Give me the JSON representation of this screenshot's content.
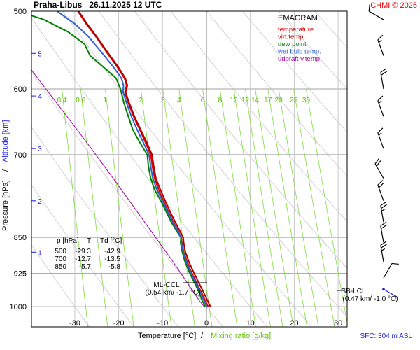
{
  "chart_data": {
    "type": "line",
    "title": "Praha-Libus   26.11.2025 12 UTC",
    "station": "Praha-Libus",
    "datetime": "26.11.2025 12 UTC",
    "copyright": "CHMI © 2025",
    "diagram_name": "EMAGRAM",
    "xlabel": "Temperature [°C]",
    "xlabel_sep": "/",
    "xlabel2": "Mixing ratio [g/kg]",
    "ylabel": "Pressure [hPa]",
    "ylabel_sep": "/",
    "ylabel2": "Altitude [km]",
    "surface_note": "SFC: 304 m ASL",
    "xlim": [
      -40,
      32
    ],
    "ylim_hpa": [
      1000,
      500
    ],
    "x_ticks": [
      -30,
      -20,
      -10,
      0,
      10,
      20,
      30
    ],
    "x_tick_labels": [
      "-30",
      "-20",
      "-10",
      "0",
      "10",
      "20",
      "30"
    ],
    "p_ticks": [
      500,
      600,
      700,
      850,
      925,
      1000
    ],
    "p_tick_labels": [
      "500",
      "600",
      "700",
      "850",
      "925",
      "1000"
    ],
    "altitude_ticks": [
      {
        "km": "5",
        "p": 552
      },
      {
        "km": "4",
        "p": 610
      },
      {
        "km": "3",
        "p": 690
      },
      {
        "km": "2",
        "p": 780
      },
      {
        "km": "1",
        "p": 880
      }
    ],
    "mixing_ratio_labels": [
      "0.4",
      "0.6",
      "1",
      "2",
      "3",
      "4",
      "6",
      "8",
      "10",
      "12",
      "14",
      "17",
      "20",
      "25",
      "30"
    ],
    "mixing_ratio_values": [
      0.4,
      0.6,
      1,
      2,
      3,
      4,
      6,
      8,
      10,
      12,
      14,
      17,
      20,
      25,
      30
    ],
    "legend": [
      {
        "label": "temperature",
        "color": "#e00000"
      },
      {
        "label": "virt.temp.",
        "color": "#b00000"
      },
      {
        "label": "dew point",
        "color": "#008000"
      },
      {
        "label": "wet bulb temp.",
        "color": "#3060d0"
      },
      {
        "label": "udpraft v.temp.",
        "color": "#a000a0"
      }
    ],
    "legend_placement": "top-right",
    "series": [
      {
        "name": "temperature",
        "color": "#e00000",
        "points": [
          [
            1000,
            0.4
          ],
          [
            985,
            -0.3
          ],
          [
            960,
            -1.5
          ],
          [
            925,
            -3.3
          ],
          [
            900,
            -4.4
          ],
          [
            880,
            -5.2
          ],
          [
            860,
            -5.6
          ],
          [
            850,
            -5.7
          ],
          [
            840,
            -6.3
          ],
          [
            820,
            -7.5
          ],
          [
            800,
            -8.7
          ],
          [
            780,
            -9.8
          ],
          [
            760,
            -10.9
          ],
          [
            740,
            -11.8
          ],
          [
            720,
            -12.3
          ],
          [
            700,
            -12.7
          ],
          [
            680,
            -13.9
          ],
          [
            660,
            -15.2
          ],
          [
            640,
            -16.6
          ],
          [
            620,
            -17.8
          ],
          [
            605,
            -18.6
          ],
          [
            595,
            -18.2
          ],
          [
            585,
            -18.7
          ],
          [
            570,
            -20.3
          ],
          [
            550,
            -22.8
          ],
          [
            530,
            -25.3
          ],
          [
            515,
            -27.4
          ],
          [
            500,
            -29.3
          ]
        ]
      },
      {
        "name": "virt.temp.",
        "color": "#b00000",
        "points": [
          [
            1000,
            0.9
          ],
          [
            985,
            0.2
          ],
          [
            960,
            -1.0
          ],
          [
            925,
            -2.8
          ],
          [
            900,
            -4.0
          ],
          [
            880,
            -4.8
          ],
          [
            860,
            -5.2
          ],
          [
            850,
            -5.3
          ],
          [
            840,
            -5.9
          ],
          [
            820,
            -7.1
          ],
          [
            800,
            -8.3
          ],
          [
            780,
            -9.4
          ],
          [
            760,
            -10.5
          ],
          [
            740,
            -11.5
          ],
          [
            720,
            -12.0
          ],
          [
            700,
            -12.4
          ],
          [
            680,
            -13.6
          ],
          [
            660,
            -15.0
          ],
          [
            640,
            -16.4
          ],
          [
            620,
            -17.6
          ],
          [
            605,
            -18.4
          ],
          [
            595,
            -18.0
          ],
          [
            585,
            -18.5
          ],
          [
            570,
            -20.1
          ],
          [
            550,
            -22.6
          ],
          [
            530,
            -25.1
          ],
          [
            515,
            -27.2
          ],
          [
            500,
            -29.1
          ]
        ]
      },
      {
        "name": "dew point",
        "color": "#008000",
        "points": [
          [
            1000,
            -0.3
          ],
          [
            985,
            -1.0
          ],
          [
            960,
            -2.0
          ],
          [
            925,
            -3.8
          ],
          [
            900,
            -4.9
          ],
          [
            880,
            -5.5
          ],
          [
            860,
            -5.9
          ],
          [
            850,
            -5.8
          ],
          [
            840,
            -6.6
          ],
          [
            820,
            -8.0
          ],
          [
            800,
            -9.2
          ],
          [
            780,
            -10.4
          ],
          [
            760,
            -11.8
          ],
          [
            740,
            -12.7
          ],
          [
            720,
            -13.2
          ],
          [
            700,
            -13.5
          ],
          [
            680,
            -15.2
          ],
          [
            660,
            -16.8
          ],
          [
            640,
            -17.8
          ],
          [
            620,
            -18.8
          ],
          [
            600,
            -19.6
          ],
          [
            585,
            -20.6
          ],
          [
            570,
            -23.5
          ],
          [
            555,
            -26.5
          ],
          [
            540,
            -27.8
          ],
          [
            525,
            -31.5
          ],
          [
            510,
            -37.0
          ],
          [
            500,
            -42.9
          ]
        ]
      },
      {
        "name": "wet bulb temp.",
        "color": "#3060d0",
        "points": [
          [
            1000,
            0.1
          ],
          [
            985,
            -0.6
          ],
          [
            960,
            -1.7
          ],
          [
            925,
            -3.5
          ],
          [
            900,
            -4.6
          ],
          [
            880,
            -5.3
          ],
          [
            860,
            -5.7
          ],
          [
            850,
            -5.75
          ],
          [
            840,
            -6.4
          ],
          [
            820,
            -7.7
          ],
          [
            800,
            -8.9
          ],
          [
            780,
            -10.0
          ],
          [
            760,
            -11.3
          ],
          [
            740,
            -12.2
          ],
          [
            720,
            -12.7
          ],
          [
            700,
            -13.1
          ],
          [
            680,
            -14.4
          ],
          [
            660,
            -15.8
          ],
          [
            640,
            -17.1
          ],
          [
            620,
            -18.2
          ],
          [
            605,
            -19.0
          ],
          [
            595,
            -18.9
          ],
          [
            585,
            -19.4
          ],
          [
            570,
            -21.2
          ],
          [
            550,
            -24.0
          ],
          [
            530,
            -27.0
          ],
          [
            515,
            -30.0
          ],
          [
            500,
            -34.0
          ]
        ]
      },
      {
        "name": "udpraft v.temp.",
        "color": "#a000a0",
        "points": [
          [
            1000,
            -0.5
          ],
          [
            985,
            -1.7
          ],
          [
            960,
            -3.4
          ],
          [
            925,
            -5.8
          ],
          [
            900,
            -7.6
          ],
          [
            850,
            -11.6
          ],
          [
            800,
            -15.8
          ],
          [
            750,
            -20.3
          ],
          [
            700,
            -25.2
          ],
          [
            650,
            -30.6
          ],
          [
            600,
            -36.6
          ],
          [
            550,
            -43.0
          ],
          [
            500,
            -50.5
          ]
        ]
      }
    ],
    "summary_table": {
      "headers": [
        "p [hPa]",
        "T",
        "Td [°C]"
      ],
      "rows": [
        [
          "500",
          "-29.3",
          "-42.9"
        ],
        [
          "700",
          "-12.7",
          "-13.5"
        ],
        [
          "850",
          "-5.7",
          "-5.8"
        ]
      ]
    },
    "annotations": [
      {
        "label": "ML-CCL",
        "detail": "(0.54 km/ -1.7 °C)"
      },
      {
        "label": "SB-LCL",
        "detail": "(0.47 km/ -1.0 °C)"
      }
    ],
    "wind_barbs": [
      {
        "p": 510,
        "dir": 300,
        "kt": 10
      },
      {
        "p": 555,
        "dir": 340,
        "kt": 15
      },
      {
        "p": 600,
        "dir": 350,
        "kt": 20
      },
      {
        "p": 640,
        "dir": 340,
        "kt": 15
      },
      {
        "p": 690,
        "dir": 340,
        "kt": 15
      },
      {
        "p": 740,
        "dir": 330,
        "kt": 20
      },
      {
        "p": 780,
        "dir": 340,
        "kt": 20
      },
      {
        "p": 820,
        "dir": 350,
        "kt": 25
      },
      {
        "p": 860,
        "dir": 350,
        "kt": 20
      },
      {
        "p": 900,
        "dir": 350,
        "kt": 25
      },
      {
        "p": 935,
        "dir": 30,
        "kt": 10
      },
      {
        "p": 960,
        "dir": 120,
        "kt": 5
      }
    ],
    "grid": true
  }
}
